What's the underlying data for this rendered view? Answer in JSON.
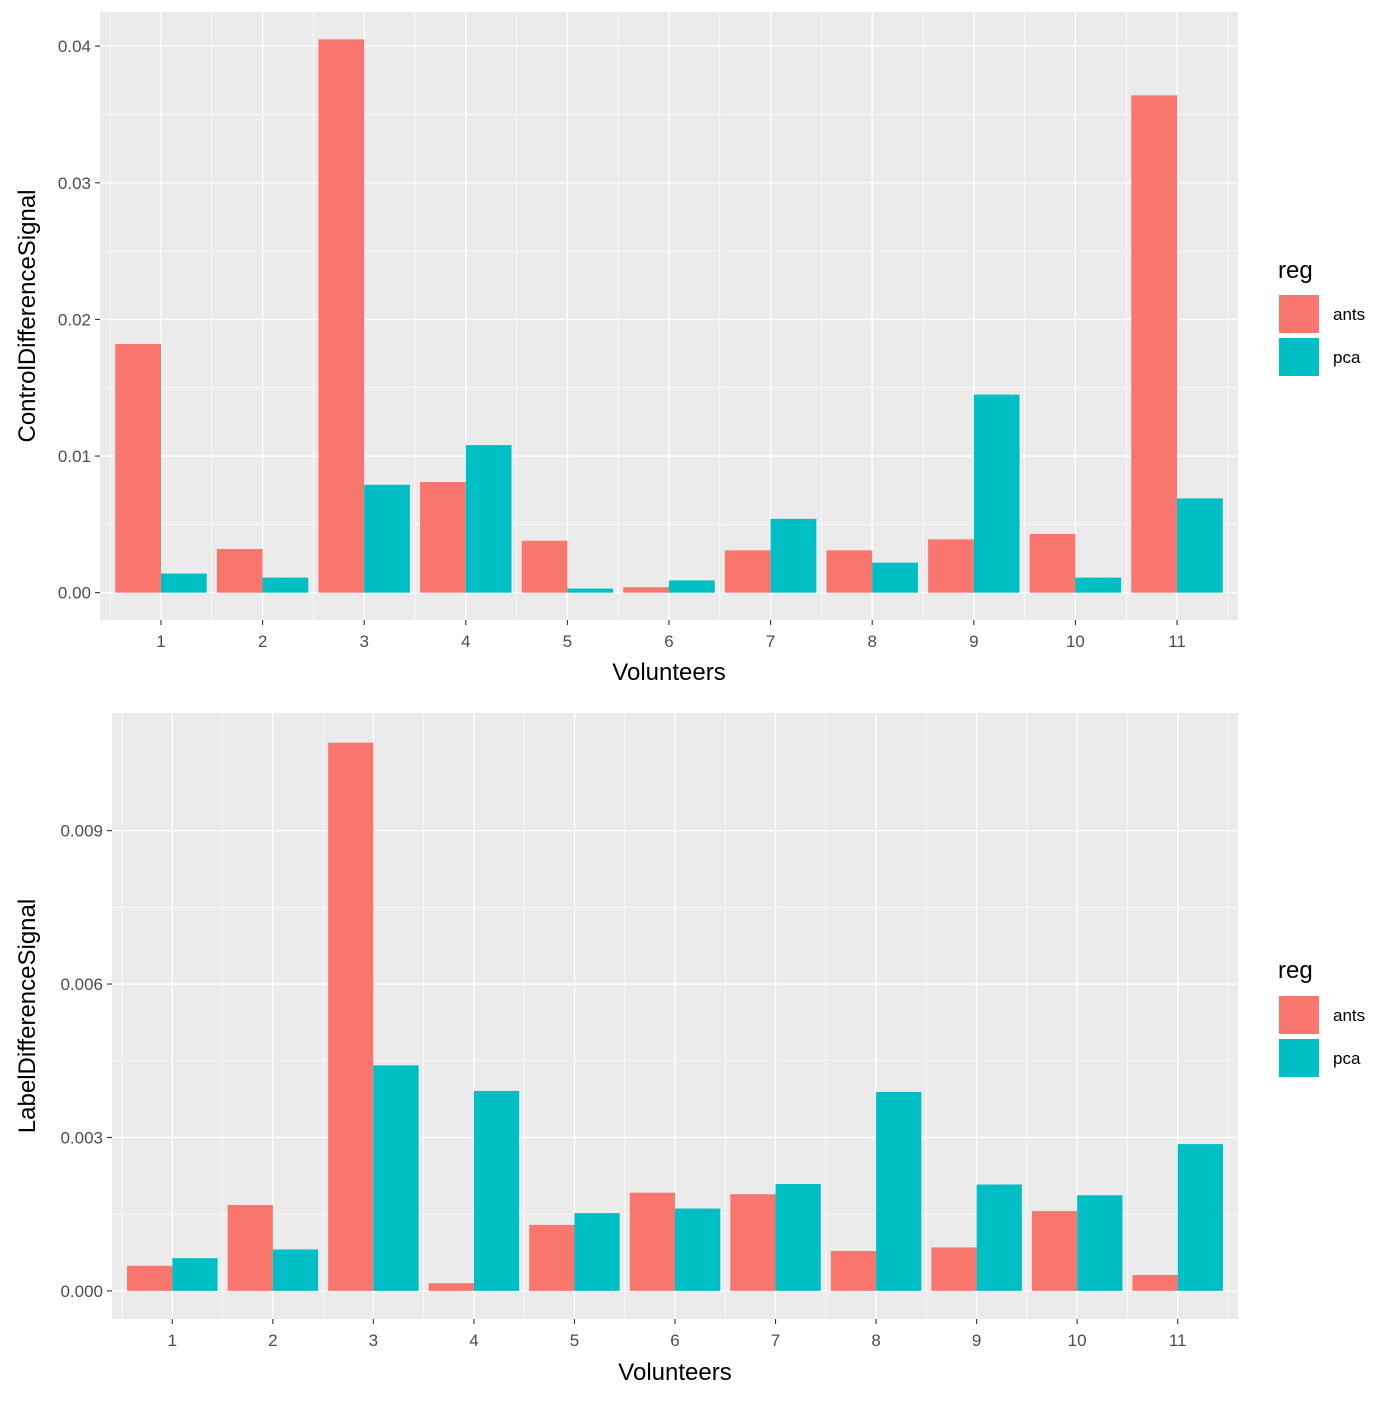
{
  "chart_data": [
    {
      "type": "bar",
      "title": "",
      "xlabel": "Volunteers",
      "ylabel": "ControlDifferenceSignal",
      "categories": [
        "1",
        "2",
        "3",
        "4",
        "5",
        "6",
        "7",
        "8",
        "9",
        "10",
        "11"
      ],
      "series": [
        {
          "name": "ants",
          "color": "#F8766D",
          "values": [
            0.0182,
            0.0032,
            0.0405,
            0.0081,
            0.0038,
            0.0004,
            0.0031,
            0.0031,
            0.0039,
            0.0043,
            0.0364
          ]
        },
        {
          "name": "pca",
          "color": "#00BFC4",
          "values": [
            0.0014,
            0.0011,
            0.0079,
            0.0108,
            0.0003,
            0.0009,
            0.0054,
            0.0022,
            0.0145,
            0.0011,
            0.0069
          ]
        }
      ],
      "ylim": [
        -0.002,
        0.0425
      ],
      "yticks": [
        0.0,
        0.01,
        0.02,
        0.03,
        0.04
      ],
      "ytick_labels": [
        "0.00",
        "0.01",
        "0.02",
        "0.03",
        "0.04"
      ],
      "legend": {
        "title": "reg",
        "position": "right",
        "labels": [
          "ants",
          "pca"
        ]
      },
      "grid": true
    },
    {
      "type": "bar",
      "title": "",
      "xlabel": "Volunteers",
      "ylabel": "LabelDifferenceSignal",
      "categories": [
        "1",
        "2",
        "3",
        "4",
        "5",
        "6",
        "7",
        "8",
        "9",
        "10",
        "11"
      ],
      "series": [
        {
          "name": "ants",
          "color": "#F8766D",
          "values": [
            0.00049,
            0.00168,
            0.01072,
            0.00015,
            0.00129,
            0.00192,
            0.00189,
            0.00078,
            0.00085,
            0.00156,
            0.00031
          ]
        },
        {
          "name": "pca",
          "color": "#00BFC4",
          "values": [
            0.00064,
            0.00081,
            0.00441,
            0.00391,
            0.00152,
            0.00161,
            0.00209,
            0.00389,
            0.00208,
            0.00187,
            0.00287
          ]
        }
      ],
      "ylim": [
        -0.00055,
        0.0113
      ],
      "yticks": [
        0.0,
        0.003,
        0.006,
        0.009
      ],
      "ytick_labels": [
        "0.000",
        "0.003",
        "0.006",
        "0.009"
      ],
      "legend": {
        "title": "reg",
        "position": "right",
        "labels": [
          "ants",
          "pca"
        ]
      },
      "grid": true
    }
  ]
}
